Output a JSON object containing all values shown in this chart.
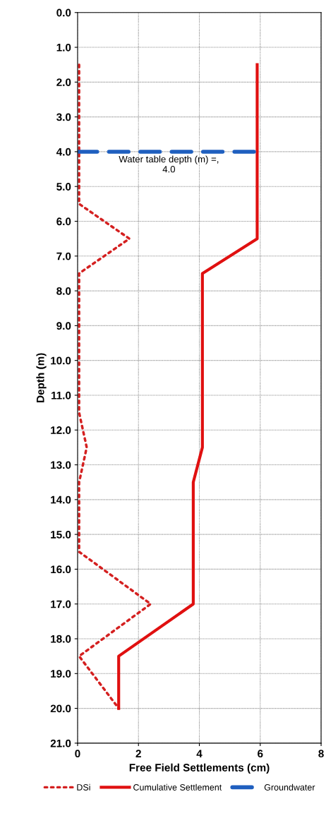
{
  "chart_data": {
    "type": "line",
    "xlabel": "Free Field Settlements (cm)",
    "ylabel": "Depth (m)",
    "xlim": [
      0,
      8
    ],
    "xticks": [
      0,
      2,
      4,
      6,
      8
    ],
    "ylim": [
      21,
      0
    ],
    "yticks": [
      {
        "value": 0,
        "label": "0.0"
      },
      {
        "value": 1,
        "label": "1.0"
      },
      {
        "value": 2,
        "label": "2.0"
      },
      {
        "value": 3,
        "label": "3.0"
      },
      {
        "value": 4,
        "label": "4.0"
      },
      {
        "value": 5,
        "label": "5.0"
      },
      {
        "value": 6,
        "label": "6.0"
      },
      {
        "value": 7,
        "label": "7.0"
      },
      {
        "value": 8,
        "label": "8.0"
      },
      {
        "value": 9,
        "label": "9.0"
      },
      {
        "value": 10,
        "label": "10.0"
      },
      {
        "value": 11,
        "label": "11.0"
      },
      {
        "value": 12,
        "label": "12.0"
      },
      {
        "value": 13,
        "label": "13.0"
      },
      {
        "value": 14,
        "label": "14.0"
      },
      {
        "value": 15,
        "label": "15.0"
      },
      {
        "value": 16,
        "label": "16.0"
      },
      {
        "value": 17,
        "label": "17.0"
      },
      {
        "value": 18,
        "label": "18.0"
      },
      {
        "value": 19,
        "label": "19.0"
      },
      {
        "value": 20,
        "label": "20.0"
      },
      {
        "value": 21,
        "label": "21.0"
      }
    ],
    "grid": true,
    "legend": "bottom",
    "marker": "none",
    "series": [
      {
        "name": "DSi",
        "color": "#d42020",
        "line_style": "dotted",
        "x": [
          0.05,
          0.05,
          1.7,
          0.05,
          0.05,
          0.3,
          0.05,
          0.05,
          2.4,
          0.05,
          1.35
        ],
        "values": [
          1.5,
          5.5,
          6.5,
          7.5,
          11.5,
          12.5,
          13.5,
          15.5,
          17.0,
          18.5,
          20.0
        ]
      },
      {
        "name": "Cumulative Settlement",
        "color": "#e01010",
        "line_style": "solid",
        "x": [
          5.9,
          5.9,
          4.1,
          4.1,
          3.8,
          3.8,
          1.35,
          1.35
        ],
        "values": [
          1.5,
          6.5,
          7.5,
          12.5,
          13.5,
          17.0,
          18.5,
          20.0
        ]
      },
      {
        "name": "Groundwater",
        "color": "#1f5fbf",
        "line_style": "dashed",
        "x": [
          0,
          5.9
        ],
        "values": [
          4.0,
          4.0
        ]
      }
    ],
    "annotations": [
      {
        "text": "Water table depth (m) =,\n4.0",
        "x": 3.0,
        "y": 4.0
      }
    ]
  }
}
